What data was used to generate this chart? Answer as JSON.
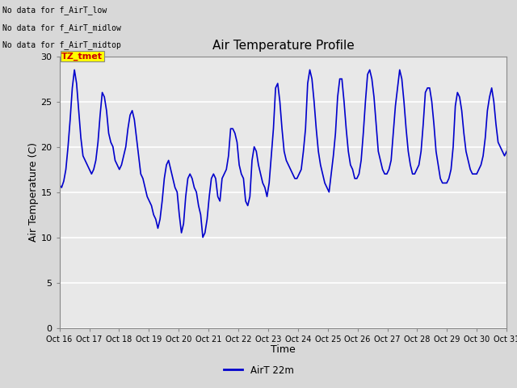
{
  "title": "Air Temperature Profile",
  "xlabel": "Time",
  "ylabel": "Air Temperature (C)",
  "ylim": [
    0,
    30
  ],
  "yticks": [
    0,
    5,
    10,
    15,
    20,
    25,
    30
  ],
  "x_tick_labels": [
    "Oct 16",
    "Oct 17",
    "Oct 18",
    "Oct 19",
    "Oct 20",
    "Oct 21",
    "Oct 22",
    "Oct 23",
    "Oct 24",
    "Oct 25",
    "Oct 26",
    "Oct 27",
    "Oct 28",
    "Oct 29",
    "Oct 30",
    "Oct 31"
  ],
  "line_color": "#0000cc",
  "line_width": 1.2,
  "bg_color": "#d8d8d8",
  "plot_bg_color": "#e8e8e8",
  "legend_label": "AirT 22m",
  "annotations": [
    "No data for f_AirT_low",
    "No data for f_AirT_midlow",
    "No data for f_AirT_midtop"
  ],
  "tz_tmet_text": "TZ_tmet",
  "tz_tmet_color": "#cc0000",
  "tz_tmet_bg": "#ffff00",
  "temperature_data": [
    15.8,
    15.5,
    16.2,
    17.5,
    20.0,
    23.0,
    26.5,
    28.5,
    27.0,
    24.0,
    21.0,
    19.0,
    18.5,
    18.0,
    17.5,
    17.0,
    17.5,
    18.5,
    20.5,
    23.5,
    26.0,
    25.5,
    24.0,
    21.5,
    20.5,
    20.0,
    18.5,
    18.0,
    17.5,
    18.0,
    19.0,
    20.0,
    22.0,
    23.5,
    24.0,
    23.0,
    21.0,
    19.0,
    17.0,
    16.5,
    15.5,
    14.5,
    14.0,
    13.5,
    12.5,
    12.0,
    11.0,
    12.0,
    14.0,
    16.5,
    18.0,
    18.5,
    17.5,
    16.5,
    15.5,
    15.0,
    12.5,
    10.5,
    11.5,
    14.5,
    16.5,
    17.0,
    16.5,
    15.5,
    15.0,
    13.5,
    12.5,
    10.0,
    10.5,
    12.0,
    14.5,
    16.5,
    17.0,
    16.5,
    14.5,
    14.0,
    16.5,
    17.0,
    17.5,
    19.0,
    22.0,
    22.0,
    21.5,
    20.5,
    18.0,
    17.0,
    16.5,
    14.0,
    13.5,
    14.5,
    18.5,
    20.0,
    19.5,
    18.0,
    17.0,
    16.0,
    15.5,
    14.5,
    16.0,
    19.0,
    22.0,
    26.5,
    27.0,
    25.0,
    22.0,
    19.5,
    18.5,
    18.0,
    17.5,
    17.0,
    16.5,
    16.5,
    17.0,
    17.5,
    19.5,
    22.0,
    27.0,
    28.5,
    27.5,
    25.0,
    22.0,
    19.5,
    18.0,
    17.0,
    16.0,
    15.5,
    15.0,
    17.0,
    19.0,
    21.5,
    25.5,
    27.5,
    27.5,
    25.0,
    22.0,
    19.5,
    18.0,
    17.5,
    16.5,
    16.5,
    17.0,
    18.5,
    21.5,
    25.0,
    28.0,
    28.5,
    27.5,
    25.5,
    22.5,
    19.5,
    18.5,
    17.5,
    17.0,
    17.0,
    17.5,
    18.5,
    21.5,
    24.5,
    26.5,
    28.5,
    27.5,
    25.0,
    22.0,
    19.5,
    18.0,
    17.0,
    17.0,
    17.5,
    18.0,
    19.5,
    22.5,
    26.0,
    26.5,
    26.5,
    25.0,
    22.5,
    19.5,
    18.0,
    16.5,
    16.0,
    16.0,
    16.0,
    16.5,
    17.5,
    20.0,
    24.5,
    26.0,
    25.5,
    24.0,
    21.5,
    19.5,
    18.5,
    17.5,
    17.0,
    17.0,
    17.0,
    17.5,
    18.0,
    19.0,
    21.0,
    24.0,
    25.5,
    26.5,
    25.0,
    22.5,
    20.5,
    20.0,
    19.5,
    19.0,
    19.5
  ]
}
